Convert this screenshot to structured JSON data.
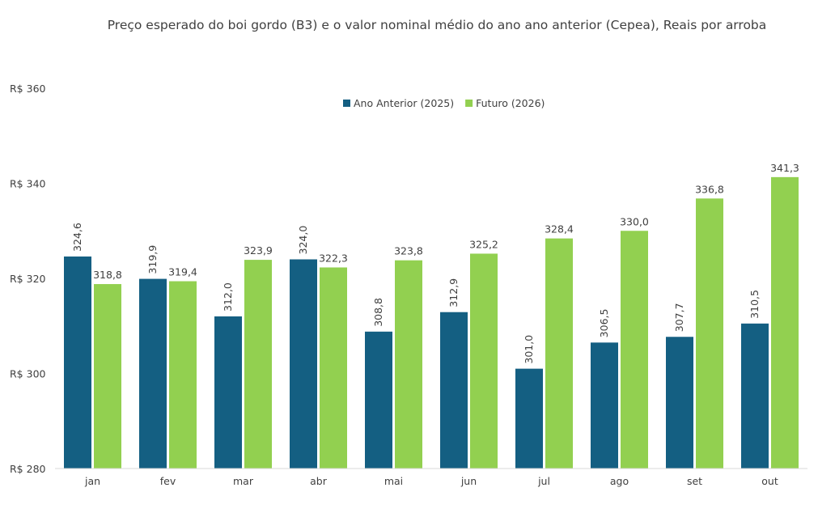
{
  "chart_data": {
    "type": "bar",
    "title": "Preço esperado do boi gordo (B3) e o valor nominal médio do ano ano anterior (Cepea), Reais por arroba",
    "categories": [
      "jan",
      "fev",
      "mar",
      "abr",
      "mai",
      "jun",
      "jul",
      "ago",
      "set",
      "out"
    ],
    "series": [
      {
        "name": "Ano Anterior (2025)",
        "color": "#145f82",
        "values": [
          324.6,
          319.9,
          312.0,
          324.0,
          308.8,
          312.9,
          301.0,
          306.5,
          307.7,
          310.5
        ]
      },
      {
        "name": "Futuro (2026)",
        "color": "#92d050",
        "values": [
          318.8,
          319.4,
          323.9,
          322.3,
          323.8,
          325.2,
          328.4,
          330.0,
          336.8,
          341.3
        ]
      }
    ],
    "ylim": [
      280,
      360
    ],
    "yticks": [
      280,
      300,
      320,
      340,
      360
    ],
    "ytick_prefix": "R$ ",
    "decimal_separator": ",",
    "legend_position": "top",
    "grid": false
  }
}
